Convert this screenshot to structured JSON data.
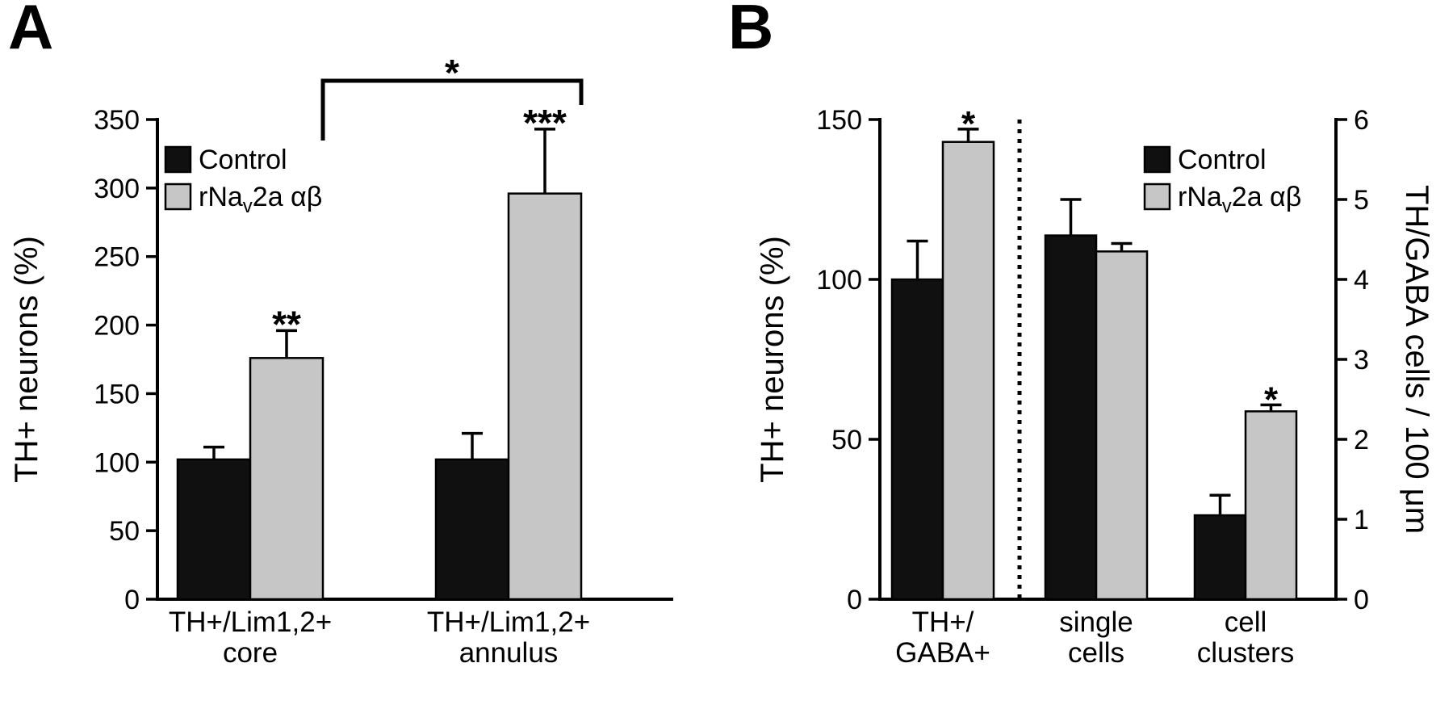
{
  "figure": {
    "background": "#ffffff"
  },
  "colors": {
    "control_fill": "#101010",
    "treated_fill": "#c6c6c6",
    "bar_outline": "#000000",
    "axis": "#000000",
    "text": "#000000"
  },
  "chart_data": [
    {
      "panel": "A",
      "type": "bar",
      "title": "",
      "ylabel": "TH+ neurons (%)",
      "ylim": [
        0,
        350
      ],
      "yticks": [
        0,
        50,
        100,
        150,
        200,
        250,
        300,
        350
      ],
      "grid": false,
      "categories": [
        [
          "TH+/Lim1,2+",
          "core"
        ],
        [
          "TH+/Lim1,2+",
          "annulus"
        ]
      ],
      "legend": {
        "position": "top-left",
        "items": [
          {
            "name": "Control",
            "parts": {
              "pre": "Control",
              "sub": "",
              "post": ""
            }
          },
          {
            "name": "rNav2a αβ",
            "parts": {
              "pre": "rNa",
              "sub": "v",
              "post": "2a αβ"
            }
          }
        ]
      },
      "series": [
        {
          "name": "Control",
          "values": [
            102,
            102
          ],
          "errors": [
            9,
            19
          ]
        },
        {
          "name": "rNav2a αβ",
          "values": [
            176,
            296
          ],
          "errors": [
            20,
            47
          ]
        }
      ],
      "significance": [
        {
          "group": 0,
          "series": 1,
          "label": "**"
        },
        {
          "group": 1,
          "series": 1,
          "label": "***"
        }
      ],
      "bracket": {
        "label": "*",
        "between_groups": [
          0,
          1
        ],
        "series": 1
      }
    },
    {
      "panel": "B",
      "type": "bar",
      "title": "",
      "ylabel_left": "TH+ neurons (%)",
      "ylabel_right": "TH/GABA cells / 100 μm",
      "ylim_left": [
        0,
        150
      ],
      "yticks_left": [
        0,
        50,
        100,
        150
      ],
      "ylim_right": [
        0,
        6
      ],
      "yticks_right": [
        0,
        1,
        2,
        3,
        4,
        5,
        6
      ],
      "grid": false,
      "categories": [
        [
          "TH+/",
          "GABA+"
        ],
        [
          "single",
          "cells"
        ],
        [
          "cell",
          "clusters"
        ]
      ],
      "group_axes": [
        "left",
        "right",
        "right"
      ],
      "separator": {
        "after_group": 0,
        "style": "dotted"
      },
      "legend": {
        "position": "top-right",
        "items": [
          {
            "name": "Control",
            "parts": {
              "pre": "Control",
              "sub": "",
              "post": ""
            }
          },
          {
            "name": "rNav2a αβ",
            "parts": {
              "pre": "rNa",
              "sub": "v",
              "post": "2a αβ"
            }
          }
        ]
      },
      "series": [
        {
          "name": "Control",
          "values": [
            100,
            4.55,
            1.05
          ],
          "errors": [
            12,
            0.45,
            0.25
          ]
        },
        {
          "name": "rNav2a αβ",
          "values": [
            143,
            4.35,
            2.35
          ],
          "errors": [
            4,
            0.1,
            0.08
          ]
        }
      ],
      "significance": [
        {
          "group": 0,
          "series": 1,
          "label": "*"
        },
        {
          "group": 2,
          "series": 1,
          "label": "*"
        }
      ]
    }
  ]
}
